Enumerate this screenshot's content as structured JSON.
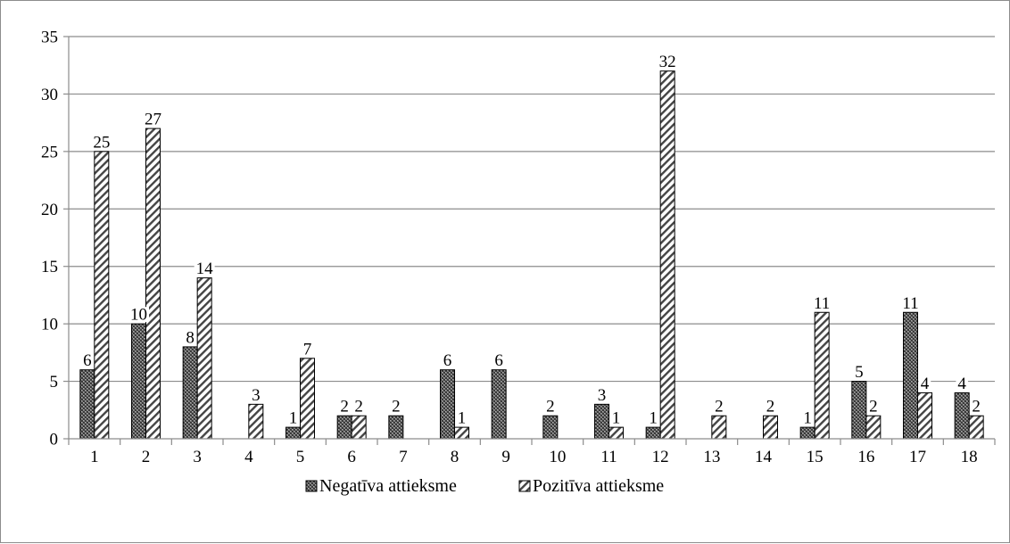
{
  "chart_data": {
    "type": "bar",
    "title": "",
    "xlabel": "",
    "ylabel": "",
    "ylim": [
      0,
      35
    ],
    "yticks": [
      0,
      5,
      10,
      15,
      20,
      25,
      30,
      35
    ],
    "categories": [
      "1",
      "2",
      "3",
      "4",
      "5",
      "6",
      "7",
      "8",
      "9",
      "10",
      "11",
      "12",
      "13",
      "14",
      "15",
      "16",
      "17",
      "18"
    ],
    "series": [
      {
        "name": "Negatīva attieksme",
        "pattern": "crosshatch",
        "values": [
          6,
          10,
          8,
          0,
          1,
          2,
          2,
          6,
          6,
          2,
          3,
          1,
          0,
          0,
          1,
          5,
          11,
          4
        ]
      },
      {
        "name": "Pozitīva attieksme",
        "pattern": "diagonal",
        "values": [
          25,
          27,
          14,
          3,
          7,
          2,
          0,
          1,
          0,
          0,
          1,
          32,
          2,
          2,
          11,
          2,
          4,
          2
        ]
      }
    ],
    "data_labels": true,
    "grid": "horizontal",
    "legend_position": "bottom"
  }
}
